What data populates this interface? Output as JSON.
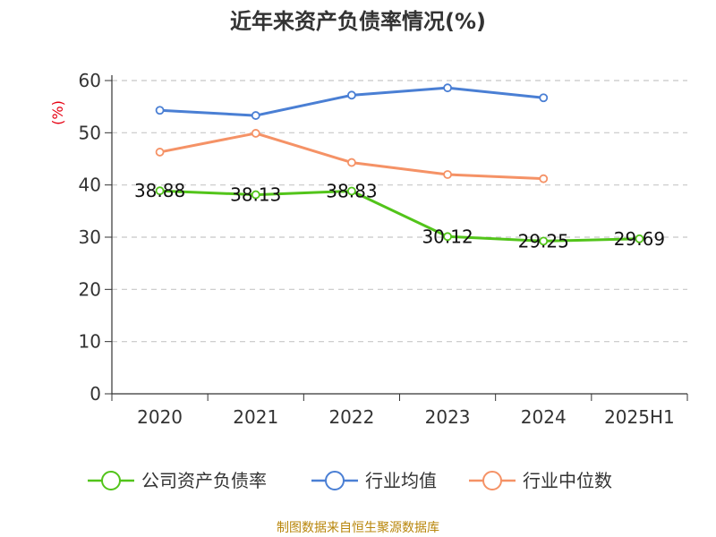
{
  "chart_data": {
    "type": "line",
    "title": "近年来资产负债率情况(%)",
    "ylabel": "(%)",
    "categories": [
      "2020",
      "2021",
      "2022",
      "2023",
      "2024",
      "2025H1"
    ],
    "ylim": [
      0,
      60
    ],
    "yticks": [
      0,
      10,
      20,
      30,
      40,
      50,
      60
    ],
    "grid": true,
    "legend_position": "bottom",
    "series": [
      {
        "name": "公司资产负债率",
        "color": "#52c41a",
        "values": [
          38.88,
          38.13,
          38.83,
          30.12,
          29.25,
          29.69
        ],
        "labels": [
          "38.88",
          "38.13",
          "38.83",
          "30.12",
          "29.25",
          "29.69"
        ]
      },
      {
        "name": "行业均值",
        "color": "#4a7fd4",
        "values": [
          54.3,
          53.3,
          57.2,
          58.6,
          56.7,
          null
        ]
      },
      {
        "name": "行业中位数",
        "color": "#f59266",
        "values": [
          46.3,
          49.9,
          44.3,
          42.0,
          41.2,
          null
        ]
      }
    ]
  },
  "source_text": "制图数据来自恒生聚源数据库"
}
